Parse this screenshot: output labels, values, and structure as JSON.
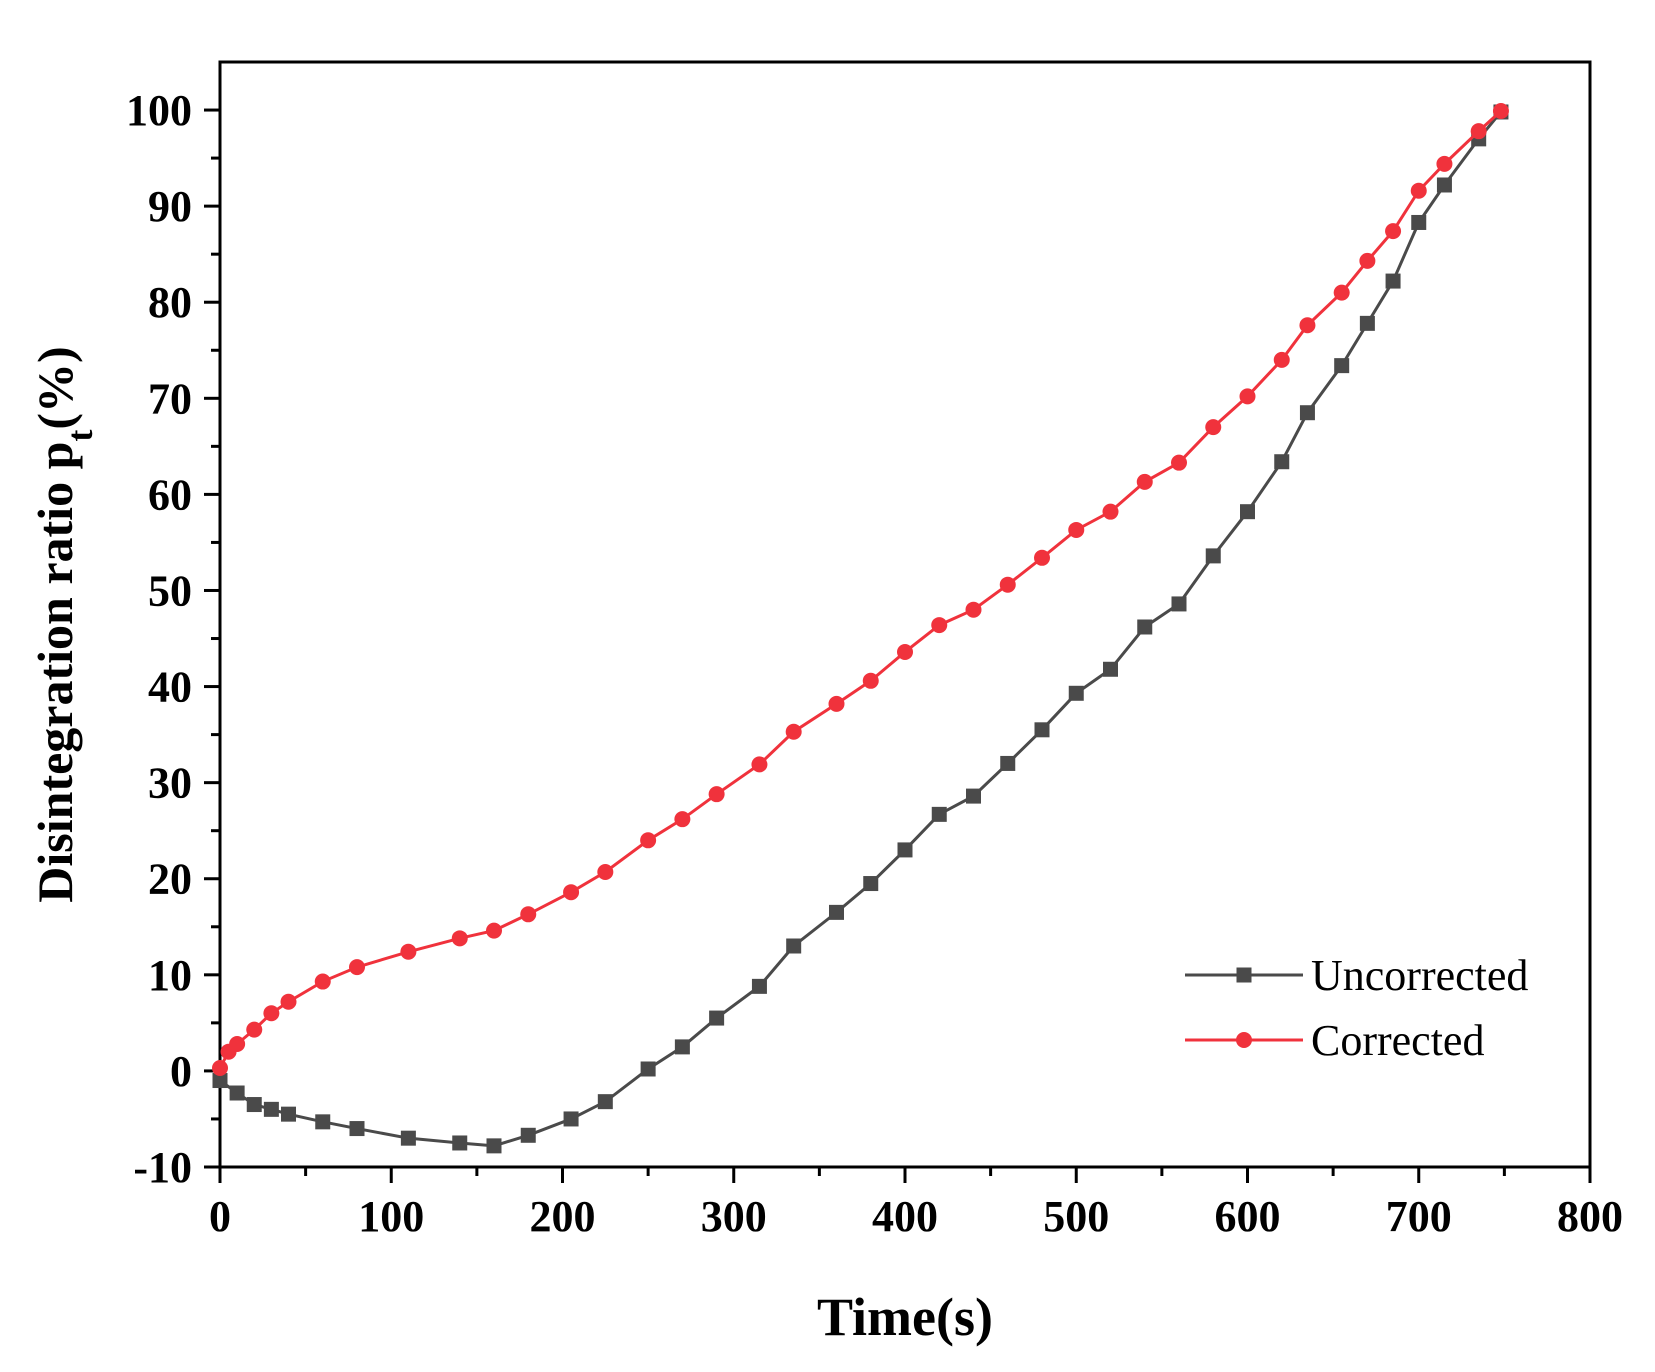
{
  "chart_data": {
    "type": "line",
    "title": "",
    "xlabel": "Time(s)",
    "ylabel": {
      "main": "Disintegration ratio p",
      "subscript": "t",
      "suffix": "(%)"
    },
    "xlim": [
      0,
      800
    ],
    "ylim": [
      -10,
      105
    ],
    "xticks": [
      0,
      100,
      200,
      300,
      400,
      500,
      600,
      700,
      800
    ],
    "yticks": [
      -10,
      0,
      10,
      20,
      30,
      40,
      50,
      60,
      70,
      80,
      90,
      100
    ],
    "grid": false,
    "legend_position": "bottom-right",
    "series": [
      {
        "name": "Uncorrected",
        "color": "#4a4a4a",
        "marker": "square",
        "x": [
          0,
          10,
          20,
          30,
          40,
          60,
          80,
          110,
          140,
          160,
          180,
          205,
          225,
          250,
          270,
          290,
          315,
          335,
          360,
          380,
          400,
          420,
          440,
          460,
          480,
          500,
          520,
          540,
          560,
          580,
          600,
          620,
          635,
          655,
          670,
          685,
          700,
          715,
          735,
          748
        ],
        "y": [
          -1,
          -2.3,
          -3.5,
          -4.0,
          -4.5,
          -5.3,
          -6.0,
          -7.0,
          -7.5,
          -7.8,
          -6.7,
          -5.0,
          -3.2,
          0.2,
          2.5,
          5.5,
          8.8,
          13.0,
          16.5,
          19.5,
          23.0,
          26.7,
          28.6,
          32.0,
          35.5,
          39.3,
          41.8,
          46.2,
          48.6,
          53.6,
          58.2,
          63.4,
          68.5,
          73.4,
          77.8,
          82.2,
          88.3,
          92.2,
          97.0,
          99.8
        ]
      },
      {
        "name": "Corrected",
        "color": "#f0323c",
        "marker": "circle",
        "x": [
          0,
          5,
          10,
          20,
          30,
          40,
          60,
          80,
          110,
          140,
          160,
          180,
          205,
          225,
          250,
          270,
          290,
          315,
          335,
          360,
          380,
          400,
          420,
          440,
          460,
          480,
          500,
          520,
          540,
          560,
          580,
          600,
          620,
          635,
          655,
          670,
          685,
          700,
          715,
          735,
          748
        ],
        "y": [
          0.3,
          2.0,
          2.8,
          4.3,
          6.0,
          7.2,
          9.3,
          10.8,
          12.4,
          13.8,
          14.6,
          16.3,
          18.6,
          20.7,
          24.0,
          26.2,
          28.8,
          31.9,
          35.3,
          38.2,
          40.6,
          43.6,
          46.4,
          48.0,
          50.6,
          53.4,
          56.3,
          58.2,
          61.3,
          63.3,
          67.0,
          70.2,
          74.0,
          77.6,
          81.0,
          84.3,
          87.4,
          91.6,
          94.4,
          97.8,
          99.9
        ]
      }
    ]
  }
}
